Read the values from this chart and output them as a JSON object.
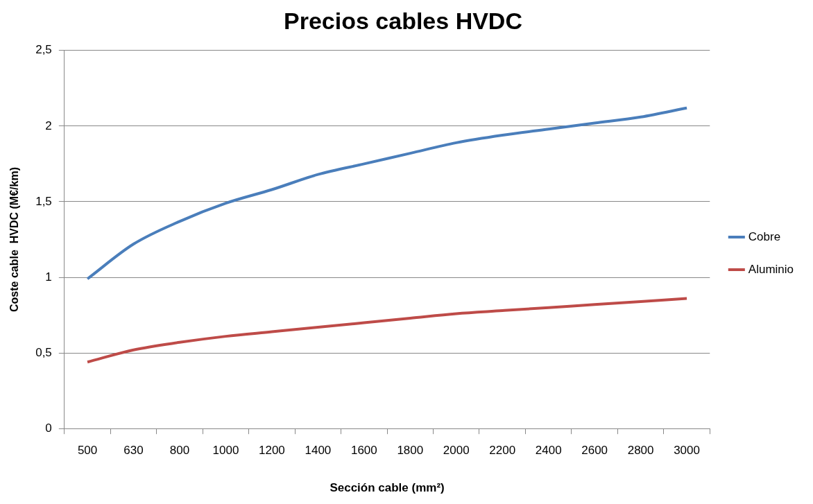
{
  "chart_data": {
    "type": "line",
    "title": "Precios cables HVDC",
    "xlabel": "Sección cable (mm²)",
    "ylabel": "Coste cable  HVDC (M€/km)",
    "categories": [
      "500",
      "630",
      "800",
      "1000",
      "1200",
      "1400",
      "1600",
      "1800",
      "2000",
      "2200",
      "2400",
      "2600",
      "2800",
      "3000"
    ],
    "series": [
      {
        "name": "Cobre",
        "color": "#4a7ebb",
        "values": [
          0.99,
          1.22,
          1.37,
          1.49,
          1.58,
          1.68,
          1.75,
          1.82,
          1.89,
          1.94,
          1.98,
          2.02,
          2.06,
          2.12
        ]
      },
      {
        "name": "Aluminio",
        "color": "#be4b48",
        "values": [
          0.44,
          0.52,
          0.57,
          0.61,
          0.64,
          0.67,
          0.7,
          0.73,
          0.76,
          0.78,
          0.8,
          0.82,
          0.84,
          0.86
        ]
      }
    ],
    "ylim": [
      0,
      2.5
    ],
    "yticks": [
      0,
      {
        "value": 0.5,
        "label": "0,5"
      },
      1,
      {
        "value": 1.5,
        "label": "1,5"
      },
      2,
      {
        "value": 2.5,
        "label": "2,5"
      }
    ],
    "grid": "y",
    "legend": "right",
    "marker": "none",
    "line_style": "solid"
  }
}
